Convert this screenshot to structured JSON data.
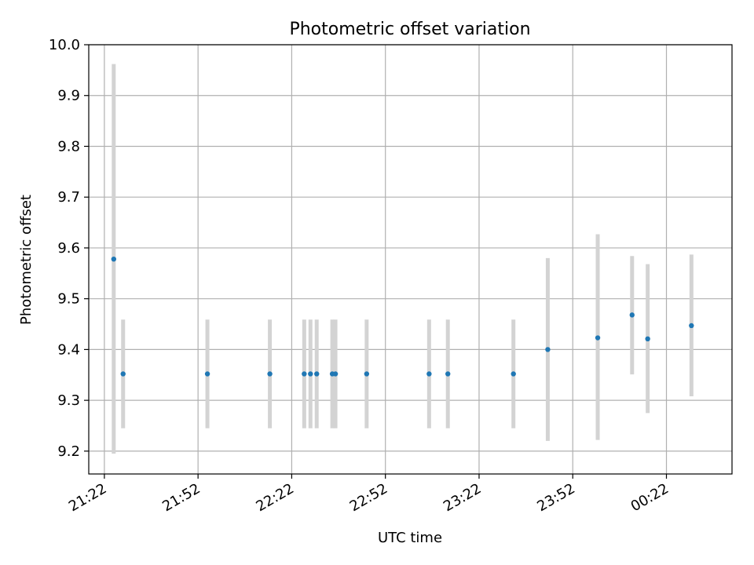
{
  "chart_data": {
    "type": "scatter",
    "title": "Photometric offset variation",
    "xlabel": "UTC time",
    "ylabel": "Photometric offset",
    "grid": true,
    "x_axis_kind": "time",
    "xlim": [
      "21:17",
      "00:43"
    ],
    "ylim": [
      9.155,
      10.0
    ],
    "x_ticks": [
      "21:22",
      "21:52",
      "22:22",
      "22:52",
      "23:22",
      "23:52",
      "00:22"
    ],
    "y_ticks": [
      "9.2",
      "9.3",
      "9.4",
      "9.5",
      "9.6",
      "9.7",
      "9.8",
      "9.9",
      "10.0"
    ],
    "series": [
      {
        "marker_color": "#1f77b4",
        "errorbar_color": "#d3d3d3",
        "points": [
          {
            "x": "21:25",
            "y": 9.578,
            "ylow": 9.195,
            "yhigh": 9.962
          },
          {
            "x": "21:28",
            "y": 9.352,
            "ylow": 9.245,
            "yhigh": 9.459
          },
          {
            "x": "21:55",
            "y": 9.352,
            "ylow": 9.245,
            "yhigh": 9.459
          },
          {
            "x": "22:15",
            "y": 9.352,
            "ylow": 9.245,
            "yhigh": 9.459
          },
          {
            "x": "22:26",
            "y": 9.352,
            "ylow": 9.245,
            "yhigh": 9.459
          },
          {
            "x": "22:28",
            "y": 9.352,
            "ylow": 9.245,
            "yhigh": 9.459
          },
          {
            "x": "22:30",
            "y": 9.352,
            "ylow": 9.245,
            "yhigh": 9.459
          },
          {
            "x": "22:35",
            "y": 9.352,
            "ylow": 9.245,
            "yhigh": 9.459
          },
          {
            "x": "22:36",
            "y": 9.352,
            "ylow": 9.245,
            "yhigh": 9.459
          },
          {
            "x": "22:46",
            "y": 9.352,
            "ylow": 9.245,
            "yhigh": 9.459
          },
          {
            "x": "23:06",
            "y": 9.352,
            "ylow": 9.245,
            "yhigh": 9.459
          },
          {
            "x": "23:12",
            "y": 9.352,
            "ylow": 9.245,
            "yhigh": 9.459
          },
          {
            "x": "23:33",
            "y": 9.352,
            "ylow": 9.245,
            "yhigh": 9.459
          },
          {
            "x": "23:44",
            "y": 9.4,
            "ylow": 9.22,
            "yhigh": 9.58
          },
          {
            "x": "00:00",
            "y": 9.423,
            "ylow": 9.222,
            "yhigh": 9.627
          },
          {
            "x": "00:11",
            "y": 9.468,
            "ylow": 9.351,
            "yhigh": 9.584
          },
          {
            "x": "00:16",
            "y": 9.421,
            "ylow": 9.275,
            "yhigh": 9.568
          },
          {
            "x": "00:30",
            "y": 9.447,
            "ylow": 9.308,
            "yhigh": 9.587
          }
        ]
      }
    ]
  }
}
